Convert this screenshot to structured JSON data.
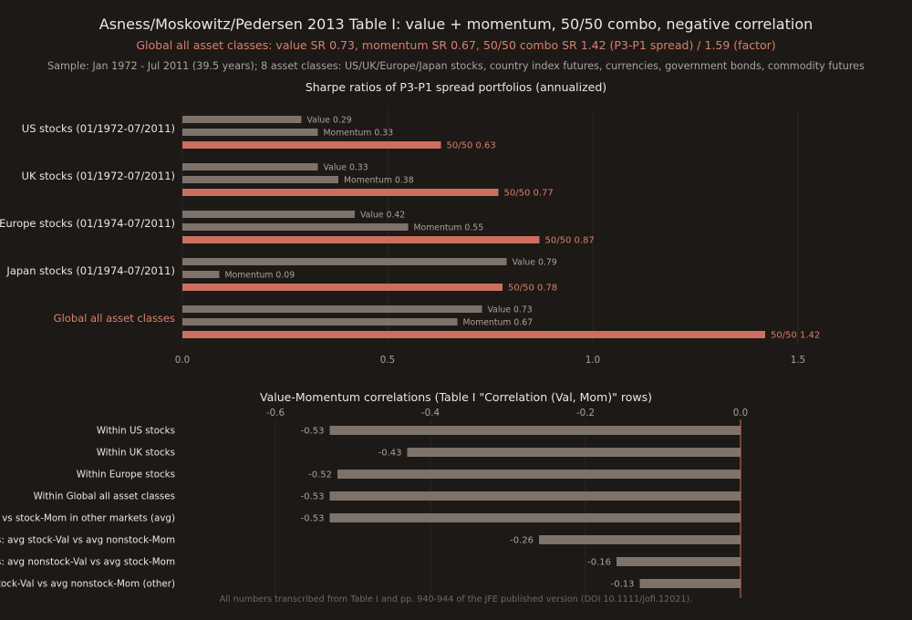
{
  "title": "Asness/Moskowitz/Pedersen 2013 Table I: value + momentum, 50/50 combo, negative correlation",
  "subtitle": "Global all asset classes: value SR 0.73, momentum SR 0.67, 50/50 combo SR 1.42 (P3-P1 spread) / 1.59 (factor)",
  "sample_note": "Sample: Jan 1972 - Jul 2011 (39.5 years); 8 asset classes: US/UK/Europe/Japan stocks, country index futures, currencies, government bonds, commodity futures",
  "footer": "All numbers transcribed from Table I and pp. 940-944 of the JFE published version (DOI 10.1111/jofi.12021).",
  "colors": {
    "background": "#1d1916",
    "bar_gray": "#7d736a",
    "accent": "#cd6f5e",
    "text": "#ece6de",
    "muted": "#aaa39a"
  },
  "chart_data": [
    {
      "type": "bar",
      "orientation": "horizontal",
      "title": "Sharpe ratios of P3-P1 spread portfolios (annualized)",
      "xlim": [
        0,
        1.8
      ],
      "xticks": [
        "0.0",
        "0.5",
        "1.0",
        "1.5"
      ],
      "grid": true,
      "groups": [
        {
          "label": "US stocks (01/1972-07/2011)",
          "highlight": false,
          "bars": [
            {
              "name": "Value",
              "value": 0.29,
              "label": "Value 0.29"
            },
            {
              "name": "Momentum",
              "value": 0.33,
              "label": "Momentum 0.33"
            },
            {
              "name": "50/50",
              "value": 0.63,
              "label": "50/50 0.63"
            }
          ]
        },
        {
          "label": "UK stocks (01/1972-07/2011)",
          "highlight": false,
          "bars": [
            {
              "name": "Value",
              "value": 0.33,
              "label": "Value 0.33"
            },
            {
              "name": "Momentum",
              "value": 0.38,
              "label": "Momentum 0.38"
            },
            {
              "name": "50/50",
              "value": 0.77,
              "label": "50/50 0.77"
            }
          ]
        },
        {
          "label": "Europe stocks (01/1974-07/2011)",
          "highlight": false,
          "bars": [
            {
              "name": "Value",
              "value": 0.42,
              "label": "Value 0.42"
            },
            {
              "name": "Momentum",
              "value": 0.55,
              "label": "Momentum 0.55"
            },
            {
              "name": "50/50",
              "value": 0.87,
              "label": "50/50 0.87"
            }
          ]
        },
        {
          "label": "Japan stocks (01/1974-07/2011)",
          "highlight": false,
          "bars": [
            {
              "name": "Value",
              "value": 0.79,
              "label": "Value 0.79"
            },
            {
              "name": "Momentum",
              "value": 0.09,
              "label": "Momentum 0.09"
            },
            {
              "name": "50/50",
              "value": 0.78,
              "label": "50/50 0.78"
            }
          ]
        },
        {
          "label": "Global all asset classes",
          "highlight": true,
          "bars": [
            {
              "name": "Value",
              "value": 0.73,
              "label": "Value 0.73"
            },
            {
              "name": "Momentum",
              "value": 0.67,
              "label": "Momentum 0.67"
            },
            {
              "name": "50/50",
              "value": 1.42,
              "label": "50/50 1.42"
            }
          ]
        }
      ]
    },
    {
      "type": "bar",
      "orientation": "horizontal",
      "title": "Value-Momentum correlations (Table I \"Correlation (Val, Mom)\" rows)",
      "xlim": [
        -0.72,
        0.0
      ],
      "xticks": [
        "-0.6",
        "-0.4",
        "-0.2",
        "0.0"
      ],
      "xticks_position": "top",
      "grid": true,
      "categories": [
        "Within US stocks",
        "Within UK stocks",
        "Within Europe stocks",
        "Within Global all asset classes",
        "al vs stock-Mom in other markets (avg)",
        "s: avg stock-Val vs avg nonstock-Mom",
        "s: avg nonstock-Val vs avg stock-Mom",
        "stock-Val vs avg nonstock-Mom (other)"
      ],
      "values": [
        -0.53,
        -0.43,
        -0.52,
        -0.53,
        -0.53,
        -0.26,
        -0.16,
        -0.13
      ],
      "value_labels": [
        "-0.53",
        "-0.43",
        "-0.52",
        "-0.53",
        "-0.53",
        "-0.26",
        "-0.16",
        "-0.13"
      ]
    }
  ]
}
